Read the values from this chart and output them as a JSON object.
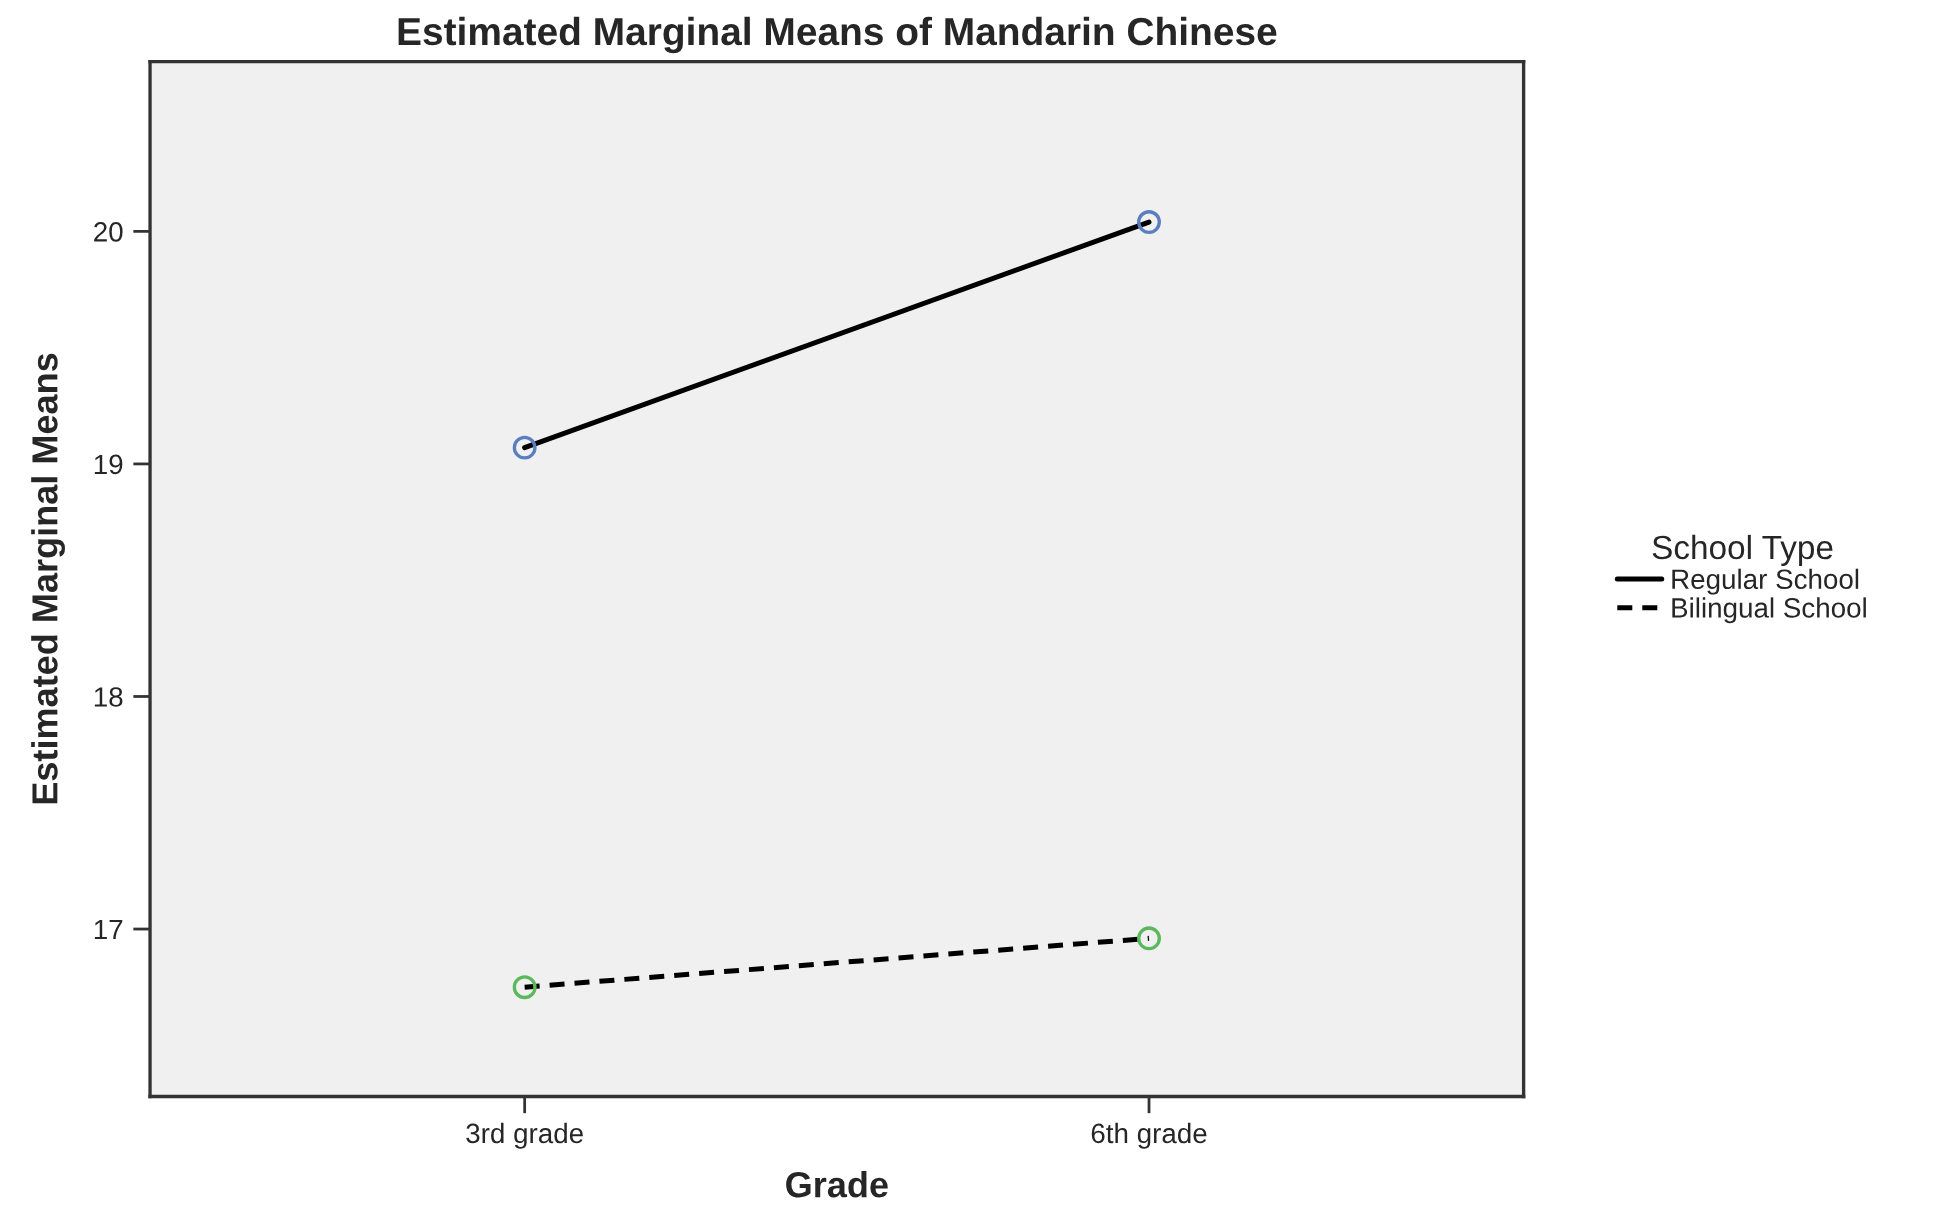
{
  "chart_data": {
    "type": "line",
    "title": "Estimated Marginal Means of Mandarin Chinese",
    "xlabel": "Grade",
    "ylabel": "Estimated Marginal Means",
    "legend_title": "School Type",
    "categories": [
      "3rd grade",
      "6th grade"
    ],
    "series": [
      {
        "name": "Regular School",
        "color": "#000000",
        "colors": [
          "#5b7ec2",
          "#5b7ec2"
        ],
        "values": [
          19.07,
          20.04
        ],
        "line_style": "solid"
      },
      {
        "name": "Bilingual School",
        "color": "#000000",
        "colors": [
          "#5cb85c",
          "#5cb85c"
        ],
        "values": [
          16.75,
          16.96
        ],
        "line_style": "dashed"
      }
    ],
    "ylim": [
      16.28,
      20.73
    ],
    "yticks": [
      17,
      18,
      19,
      20
    ],
    "grid": false,
    "legend": "right",
    "marker": "circle"
  }
}
